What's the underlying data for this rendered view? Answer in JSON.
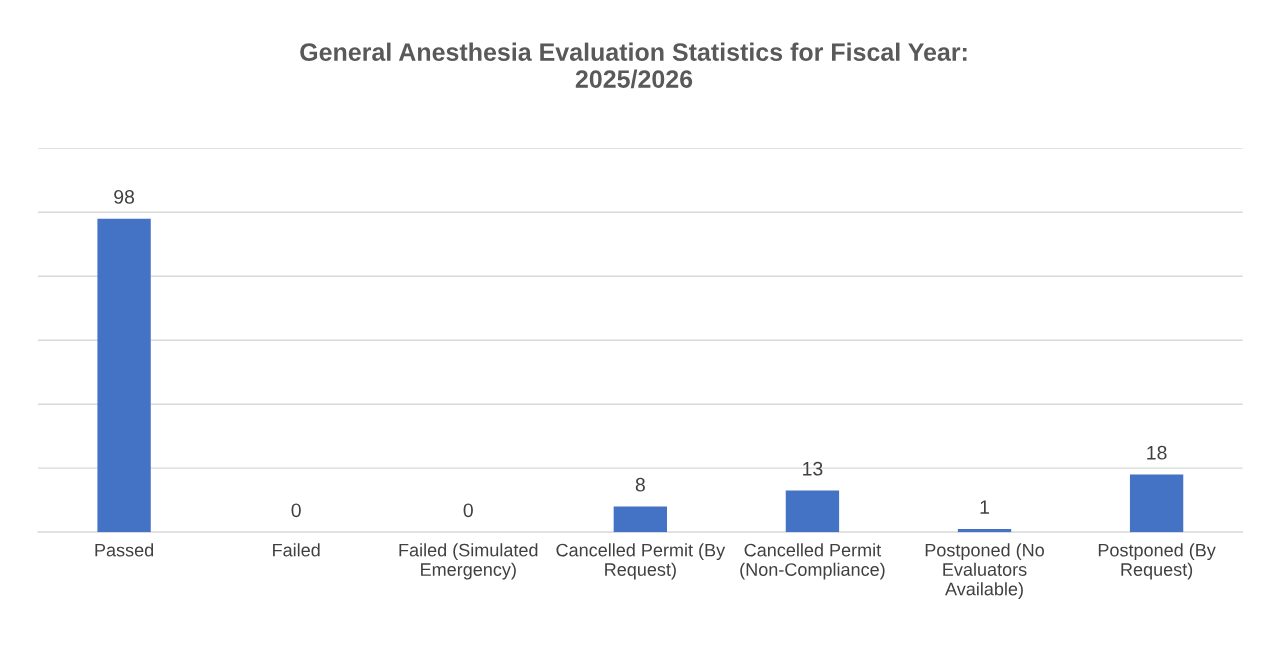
{
  "chart_data": {
    "type": "bar",
    "title": "General Anesthesia Evaluation Statistics for Fiscal Year: 2025/2026",
    "categories": [
      "Passed",
      "Failed",
      "Failed (Simulated Emergency)",
      "Cancelled Permit (By Request)",
      "Cancelled Permit (Non-Compliance)",
      "Postponed (No Evaluators Available)",
      "Postponed (By Request)"
    ],
    "values": [
      98,
      0,
      0,
      8,
      13,
      1,
      18
    ],
    "color": "#4472c4",
    "ylim": [
      0,
      120
    ],
    "yticks": [
      {
        "value": 0,
        "label": null
      },
      {
        "value": 20,
        "label": null
      },
      {
        "value": 40,
        "label": null
      },
      {
        "value": 60,
        "label": null
      },
      {
        "value": 80,
        "label": null
      },
      {
        "value": 100,
        "label": null
      },
      {
        "value": 120,
        "label": null
      }
    ],
    "grid": "y",
    "data_labels": true,
    "tick_labels": "x"
  }
}
